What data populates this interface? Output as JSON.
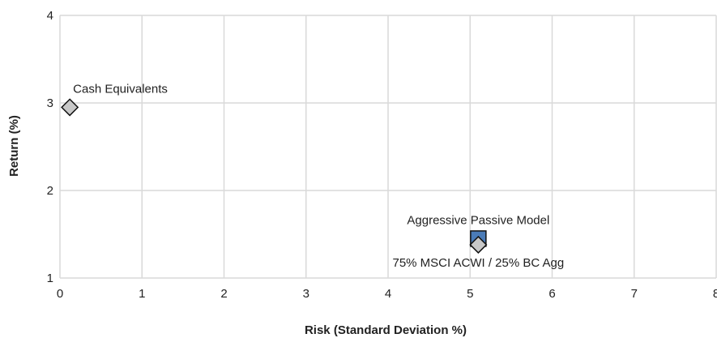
{
  "chart_data": {
    "type": "scatter",
    "xlabel": "Risk (Standard Deviation %)",
    "ylabel": "Return (%)",
    "xlim": [
      0,
      8
    ],
    "ylim": [
      1,
      4
    ],
    "x_ticks": [
      "0",
      "1",
      "2",
      "3",
      "4",
      "5",
      "6",
      "7",
      "8"
    ],
    "y_ticks": [
      "1",
      "2",
      "3",
      "4"
    ],
    "grid": true,
    "series": [
      {
        "name": "Cash Equivalents",
        "x": 0.12,
        "y": 2.95,
        "marker": "diamond",
        "color": "#c8c8c8",
        "label_position": "above-right"
      },
      {
        "name": "Aggressive Passive Model",
        "x": 5.1,
        "y": 1.45,
        "marker": "square",
        "color": "#4a7bb7",
        "label_position": "above"
      },
      {
        "name": "75% MSCI ACWI / 25% BC Agg",
        "x": 5.1,
        "y": 1.38,
        "marker": "diamond",
        "color": "#c8c8c8",
        "label_position": "below"
      }
    ]
  }
}
